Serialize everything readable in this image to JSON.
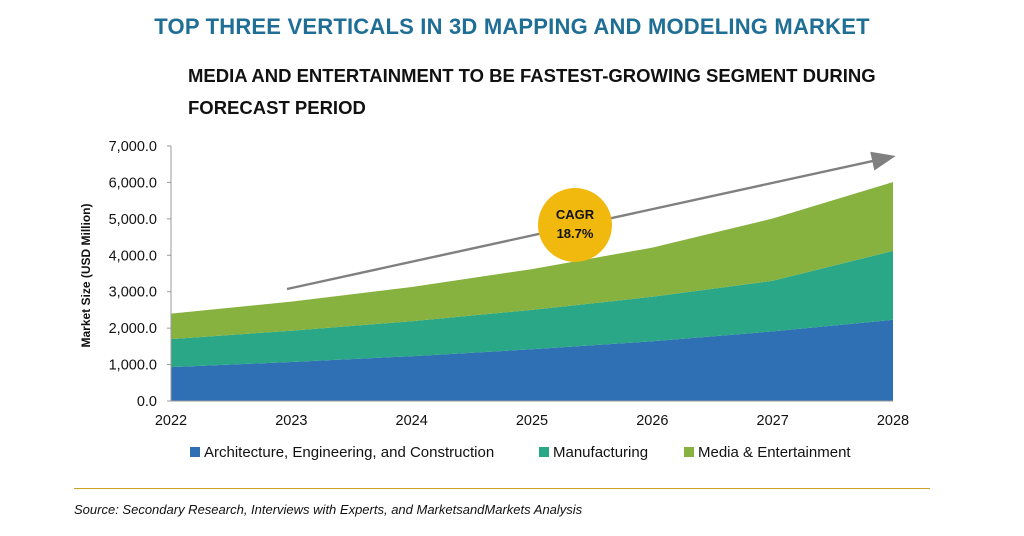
{
  "title": "TOP THREE VERTICALS IN 3D MAPPING AND MODELING MARKET",
  "subtitle": "MEDIA AND ENTERTAINMENT TO BE FASTEST-GROWING SEGMENT DURING FORECAST PERIOD",
  "source": "Source: Secondary Research, Interviews with Experts, and MarketsandMarkets Analysis",
  "colors": {
    "title": "#1f6e96",
    "aec": "#2f6fb4",
    "manufacturing": "#2aa787",
    "media": "#87b23f",
    "badge": "#f1b90e",
    "arrow": "#808080",
    "rule": "#c9a227"
  },
  "chart_data": {
    "type": "area",
    "stacked": true,
    "x": [
      "2022",
      "2023",
      "2024",
      "2025",
      "2026",
      "2027",
      "2028"
    ],
    "ylabel": "Market Size (USD Million)",
    "xlabel": "",
    "ylim": [
      0,
      7000
    ],
    "yticks": [
      "0.0",
      "1,000.0",
      "2,000.0",
      "3,000.0",
      "4,000.0",
      "5,000.0",
      "6,000.0",
      "7,000.0"
    ],
    "grid": false,
    "legend_position": "bottom",
    "series": [
      {
        "name": "Architecture, Engineering, and Construction",
        "values": [
          930,
          1070,
          1230,
          1420,
          1640,
          1910,
          2230
        ]
      },
      {
        "name": "Manufacturing",
        "values": [
          770,
          860,
          960,
          1080,
          1220,
          1390,
          1890
        ]
      },
      {
        "name": "Media & Entertainment",
        "values": [
          700,
          800,
          940,
          1120,
          1350,
          1710,
          1890
        ]
      }
    ],
    "annotation": {
      "label": "CAGR",
      "value": "18.7%"
    }
  }
}
